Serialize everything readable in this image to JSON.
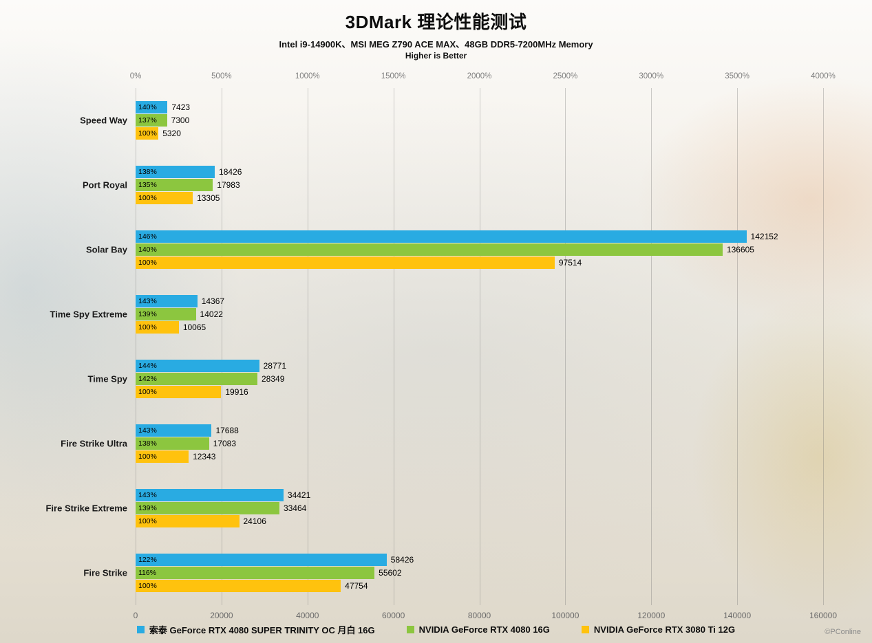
{
  "header": {
    "title": "3DMark 理论性能测试",
    "subtitle": "Intel i9-14900K、MSI MEG Z790 ACE MAX、48GB DDR5-7200MHz Memory",
    "note": "Higher is Better"
  },
  "watermark": "©PConline",
  "chart_data": {
    "type": "bar",
    "orientation": "horizontal",
    "title": "3DMark 理论性能测试",
    "subtitle": "Intel i9-14900K、MSI MEG Z790 ACE MAX、48GB DDR5-7200MHz Memory",
    "note": "Higher is Better",
    "grid": true,
    "legend_position": "bottom",
    "xlim": [
      0,
      160000
    ],
    "categories": [
      "Speed Way",
      "Port Royal",
      "Solar Bay",
      "Time Spy Extreme",
      "Time Spy",
      "Fire Strike Ultra",
      "Fire Strike Extreme",
      "Fire Strike"
    ],
    "series": [
      {
        "name": "索泰 GeForce RTX 4080 SUPER TRINITY OC 月白 16G",
        "color": "#29ABE2",
        "values": [
          7423,
          18426,
          142152,
          14367,
          28771,
          17688,
          34421,
          58426
        ],
        "percent_labels": [
          "140%",
          "138%",
          "146%",
          "143%",
          "144%",
          "143%",
          "143%",
          "122%"
        ]
      },
      {
        "name": "NVIDIA GeForce RTX 4080 16G",
        "color": "#8CC63F",
        "values": [
          7300,
          17983,
          136605,
          14022,
          28349,
          17083,
          33464,
          55602
        ],
        "percent_labels": [
          "137%",
          "135%",
          "140%",
          "139%",
          "142%",
          "138%",
          "139%",
          "116%"
        ]
      },
      {
        "name": "NVIDIA GeForce RTX 3080 Ti 12G",
        "color": "#FFC20E",
        "values": [
          5320,
          13305,
          97514,
          10065,
          19916,
          12343,
          24106,
          47754
        ],
        "percent_labels": [
          "100%",
          "100%",
          "100%",
          "100%",
          "100%",
          "100%",
          "100%",
          "100%"
        ]
      }
    ],
    "top_axis": {
      "label_format": "percent",
      "ticks": [
        "0%",
        "500%",
        "1000%",
        "1500%",
        "2000%",
        "2500%",
        "3000%",
        "3500%",
        "4000%"
      ]
    },
    "bottom_axis": {
      "label_format": "score",
      "ticks": [
        "0",
        "20000",
        "40000",
        "60000",
        "80000",
        "100000",
        "120000",
        "140000",
        "160000"
      ]
    }
  }
}
